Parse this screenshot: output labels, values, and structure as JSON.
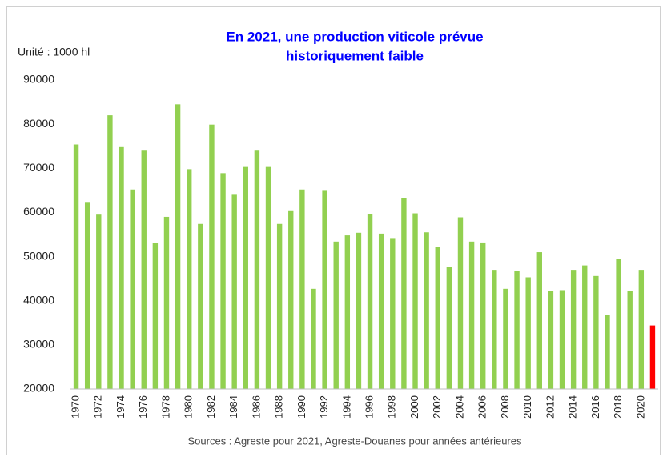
{
  "chart_data": {
    "type": "bar",
    "title": [
      "En 2021, une production viticole prévue",
      "historiquement faible"
    ],
    "unit_label": "Unité : 1000 hl",
    "source": "Sources : Agreste pour 2021, Agreste-Douanes pour années antérieures",
    "categories": [
      "1970",
      null,
      "1972",
      null,
      "1974",
      null,
      "1976",
      null,
      "1978",
      null,
      "1980",
      null,
      "1982",
      null,
      "1984",
      null,
      "1986",
      null,
      "1988",
      null,
      "1990",
      null,
      "1992",
      null,
      "1994",
      null,
      "1996",
      null,
      "1998",
      null,
      "2000",
      null,
      "2002",
      null,
      "2004",
      null,
      "2006",
      null,
      "2008",
      null,
      "2010",
      null,
      "2012",
      null,
      "2014",
      null,
      "2016",
      null,
      "2018",
      null,
      "2020",
      null
    ],
    "values": [
      75400,
      62200,
      59500,
      82000,
      74800,
      65200,
      74000,
      53100,
      59000,
      84500,
      69800,
      57400,
      79900,
      68900,
      64000,
      70300,
      74000,
      70300,
      57400,
      60300,
      65200,
      42700,
      64900,
      53400,
      54800,
      55400,
      59600,
      55200,
      54200,
      63300,
      59800,
      55500,
      52100,
      47700,
      58900,
      53400,
      53200,
      47000,
      42700,
      46700,
      45300,
      51000,
      42200,
      42400,
      47000,
      48000,
      45600,
      36800,
      49400,
      42300,
      47000,
      34400
    ],
    "colors": [
      "#92d050",
      "#92d050",
      "#92d050",
      "#92d050",
      "#92d050",
      "#92d050",
      "#92d050",
      "#92d050",
      "#92d050",
      "#92d050",
      "#92d050",
      "#92d050",
      "#92d050",
      "#92d050",
      "#92d050",
      "#92d050",
      "#92d050",
      "#92d050",
      "#92d050",
      "#92d050",
      "#92d050",
      "#92d050",
      "#92d050",
      "#92d050",
      "#92d050",
      "#92d050",
      "#92d050",
      "#92d050",
      "#92d050",
      "#92d050",
      "#92d050",
      "#92d050",
      "#92d050",
      "#92d050",
      "#92d050",
      "#92d050",
      "#92d050",
      "#92d050",
      "#92d050",
      "#92d050",
      "#92d050",
      "#92d050",
      "#92d050",
      "#92d050",
      "#92d050",
      "#92d050",
      "#92d050",
      "#92d050",
      "#92d050",
      "#92d050",
      "#92d050",
      "#ff0000"
    ],
    "ylim": [
      20000,
      90000
    ],
    "yticks": [
      20000,
      30000,
      40000,
      50000,
      60000,
      70000,
      80000,
      90000
    ],
    "grid": false
  }
}
